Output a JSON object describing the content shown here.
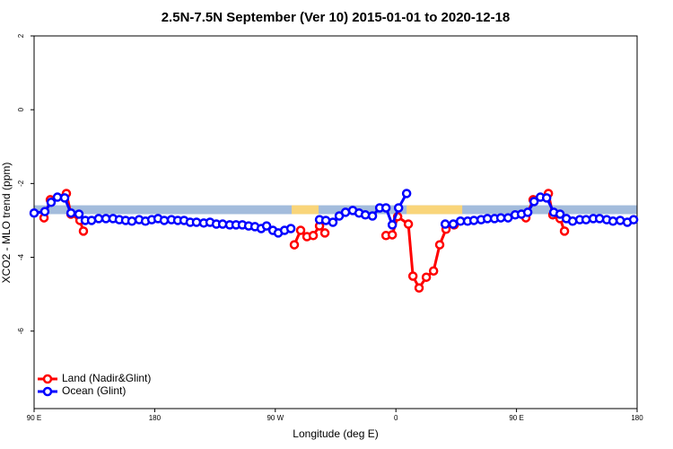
{
  "chart_data": {
    "type": "line",
    "title": "2.5N-7.5N September (Ver 10)   2015-01-01 to 2020-12-18",
    "x_label": "Longitude (deg E)",
    "y_label": "XCO2 - MLO trend (ppm)",
    "xlim": [
      90,
      540
    ],
    "ylim": [
      -8.1,
      2
    ],
    "xticks": [
      {
        "value": 90,
        "label": "90 E"
      },
      180,
      {
        "value": 270,
        "label": "90 W"
      },
      {
        "value": 360,
        "label": "0"
      },
      {
        "value": 450,
        "label": "90 E"
      },
      {
        "value": 540,
        "label": "180"
      }
    ],
    "yticks": [
      -6,
      -4,
      -2,
      0,
      2
    ],
    "legend": "bottom-left",
    "background_bands": [
      {
        "from": 90,
        "to": 540,
        "bottom": -2.83,
        "top": -2.59,
        "color": "#a3bcdc"
      },
      {
        "from": 282.2,
        "to": 302.3,
        "bottom": -2.83,
        "top": -2.59,
        "color": "#f9d57a"
      },
      {
        "from": 368,
        "to": 409.5,
        "bottom": -2.83,
        "top": -2.59,
        "color": "#f9d57a"
      }
    ],
    "series": [
      {
        "name": "Land (Nadir&Glint)",
        "color": "#ff0000",
        "x": [
          97.4,
          102.1,
          114.1,
          117.5,
          124.2,
          126.8,
          null,
          284.2,
          288.9,
          293.6,
          298.3,
          303.0,
          307.0,
          null,
          352.6,
          357.3,
          361.3,
          369.3,
          372.7,
          377.3,
          382.7,
          388.1,
          392.7,
          397.4,
          403.5,
          null,
          457.0,
          462.4,
          473.8,
          477.1,
          482.5,
          485.8
        ],
        "values": [
          -2.93,
          -2.44,
          -2.27,
          -2.83,
          -3.0,
          -3.29,
          null,
          -3.66,
          -3.27,
          -3.44,
          -3.41,
          -3.15,
          -3.34,
          null,
          -3.41,
          -3.39,
          -2.9,
          -3.1,
          -4.51,
          -4.83,
          -4.54,
          -4.37,
          -3.66,
          -3.24,
          -3.12,
          null,
          -2.93,
          -2.44,
          -2.27,
          -2.85,
          -2.95,
          -3.29
        ]
      },
      {
        "name": "Ocean (Glint)",
        "color": "#0000ff",
        "x": [
          90,
          98.0,
          102.7,
          107.4,
          112.8,
          117.5,
          123.5,
          128.2,
          132.9,
          138.2,
          143.6,
          148.9,
          153.6,
          158.3,
          163.0,
          168.4,
          173.1,
          177.8,
          182.5,
          187.1,
          192.5,
          197.2,
          201.9,
          206.5,
          211.2,
          216.6,
          221.3,
          226.0,
          230.7,
          236.0,
          240.7,
          245.4,
          250.1,
          254.8,
          259.5,
          263.5,
          268.2,
          272.2,
          276.9,
          281.6,
          null,
          303.0,
          307.7,
          313.0,
          317.7,
          322.4,
          327.8,
          332.5,
          337.2,
          342.5,
          347.9,
          352.6,
          357.3,
          362.0,
          368.0,
          null,
          396.8,
          402.8,
          408.2,
          413.5,
          418.2,
          423.6,
          428.3,
          433.6,
          438.3,
          443.7,
          449.0,
          453.7,
          458.4,
          463.1,
          467.8,
          472.5,
          477.8,
          482.5,
          487.2,
          491.9,
          497.2,
          501.9,
          507.3,
          512.0,
          517.3,
          522.0,
          527.4,
          532.7,
          537.4
        ],
        "values": [
          -2.8,
          -2.76,
          -2.51,
          -2.37,
          -2.39,
          -2.8,
          -2.83,
          -3.0,
          -3.0,
          -2.95,
          -2.95,
          -2.95,
          -2.98,
          -3.0,
          -3.02,
          -2.98,
          -3.02,
          -2.98,
          -2.95,
          -3.0,
          -2.98,
          -3.0,
          -3.0,
          -3.05,
          -3.05,
          -3.07,
          -3.05,
          -3.1,
          -3.1,
          -3.12,
          -3.12,
          -3.12,
          -3.15,
          -3.17,
          -3.22,
          -3.15,
          -3.27,
          -3.34,
          -3.27,
          -3.22,
          null,
          -2.98,
          -3.0,
          -3.05,
          -2.88,
          -2.78,
          -2.73,
          -2.8,
          -2.85,
          -2.88,
          -2.66,
          -2.66,
          -3.12,
          -2.66,
          -2.27,
          null,
          -3.1,
          -3.1,
          -3.02,
          -3.02,
          -3.0,
          -2.98,
          -2.95,
          -2.95,
          -2.93,
          -2.93,
          -2.85,
          -2.83,
          -2.78,
          -2.49,
          -2.37,
          -2.39,
          -2.78,
          -2.83,
          -2.95,
          -3.02,
          -2.98,
          -2.98,
          -2.95,
          -2.95,
          -2.98,
          -3.02,
          -3.0,
          -3.05,
          -2.98
        ]
      }
    ]
  }
}
